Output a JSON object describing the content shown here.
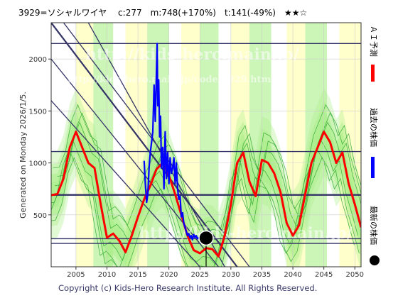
{
  "header": {
    "title": "3929=ソシャルワイヤ　 c:277　m:748(+170%)　t:141(-49%)　★★☆"
  },
  "side_label": "Generated on Monday 2026/1/5.",
  "footer": "Copyright (c) Kids-Hero Research Institute. All Rights Reserved.",
  "watermark": {
    "main": "http://kids-hero.main.jp/",
    "sub": "http://kids-hero.main.jp/code/3929.html"
  },
  "colors": {
    "prediction": "#ff0000",
    "past": "#0000ff",
    "latest": "#000000",
    "bands": "#33aa33",
    "bgyellow": "#ffffcc",
    "bggreen": "#aaee88",
    "lines": "#333366"
  },
  "legend": {
    "prediction": "ＡＩ予測",
    "past": "過去の株価",
    "latest": "最新の株価"
  },
  "chart_data": {
    "type": "line",
    "xlim": [
      2001,
      2051
    ],
    "ylim": [
      0,
      2350
    ],
    "x_ticks": [
      2005,
      2010,
      2015,
      2020,
      2025,
      2030,
      2035,
      2040,
      2045,
      2050
    ],
    "y_ticks": [
      500,
      1000,
      1500,
      2000
    ],
    "latest": {
      "x": 2026.0,
      "y": 277
    },
    "horizontal_lines": [
      2150,
      1110,
      692,
      270,
      225
    ],
    "diagonal_lines": [
      {
        "from": [
          2001,
          2350
        ],
        "to": [
          2031,
          0
        ]
      },
      {
        "from": [
          2003,
          2350
        ],
        "to": [
          2033,
          0
        ]
      },
      {
        "from": [
          2001,
          2000
        ],
        "to": [
          2028,
          0
        ]
      },
      {
        "from": [
          2001,
          1600
        ],
        "to": [
          2025,
          0
        ]
      },
      {
        "from": [
          2007,
          2350
        ],
        "to": [
          2029,
          0
        ]
      }
    ],
    "bg_bands": [
      {
        "from": 2005.0,
        "to": 2007.8,
        "color": "yellow"
      },
      {
        "from": 2007.8,
        "to": 2011.0,
        "color": "green"
      },
      {
        "from": 2013.0,
        "to": 2016.5,
        "color": "yellow"
      },
      {
        "from": 2016.5,
        "to": 2020.0,
        "color": "green"
      },
      {
        "from": 2022.0,
        "to": 2025.0,
        "color": "yellow"
      },
      {
        "from": 2025.0,
        "to": 2028.0,
        "color": "green"
      },
      {
        "from": 2030.0,
        "to": 2033.0,
        "color": "yellow"
      },
      {
        "from": 2033.0,
        "to": 2036.5,
        "color": "green"
      },
      {
        "from": 2039.0,
        "to": 2042.0,
        "color": "yellow"
      },
      {
        "from": 2042.0,
        "to": 2045.5,
        "color": "green"
      },
      {
        "from": 2047.5,
        "to": 2051.0,
        "color": "yellow"
      }
    ],
    "series": [
      {
        "role": "prediction",
        "x": [
          2001,
          2002,
          2003,
          2004,
          2005,
          2006,
          2007,
          2008,
          2009,
          2010,
          2011,
          2012,
          2013,
          2014,
          2015,
          2016,
          2017,
          2018,
          2019,
          2020,
          2021,
          2022,
          2023,
          2024,
          2025,
          2026,
          2027,
          2028,
          2029,
          2030,
          2031,
          2032,
          2033,
          2034,
          2035,
          2036,
          2037,
          2038,
          2039,
          2040,
          2041,
          2042,
          2043,
          2044,
          2045,
          2046,
          2047,
          2048,
          2049,
          2050,
          2051
        ],
        "y": [
          690,
          700,
          850,
          1150,
          1300,
          1150,
          1000,
          950,
          600,
          280,
          320,
          250,
          140,
          300,
          480,
          650,
          780,
          940,
          1000,
          880,
          700,
          500,
          300,
          160,
          130,
          180,
          170,
          100,
          300,
          600,
          1000,
          1100,
          820,
          680,
          1030,
          1000,
          900,
          720,
          420,
          300,
          400,
          700,
          1000,
          1150,
          1300,
          1200,
          1000,
          1100,
          800,
          600,
          380
        ]
      },
      {
        "role": "past",
        "x": [
          2016.0,
          2016.2,
          2016.4,
          2016.6,
          2016.8,
          2017.0,
          2017.2,
          2017.4,
          2017.6,
          2017.8,
          2018.0,
          2018.1,
          2018.2,
          2018.35,
          2018.5,
          2018.65,
          2018.8,
          2019.0,
          2019.2,
          2019.4,
          2019.6,
          2019.8,
          2020.0,
          2020.2,
          2020.4,
          2020.6,
          2020.8,
          2021.0,
          2021.2,
          2021.4,
          2021.6,
          2021.8,
          2022.0,
          2022.2,
          2022.4,
          2022.6,
          2022.8,
          2023.0,
          2023.2,
          2023.4,
          2023.6,
          2023.8,
          2024.0,
          2024.2,
          2024.4,
          2024.6,
          2024.8,
          2025.0,
          2025.2,
          2025.4,
          2025.6,
          2025.8,
          2026.0
        ],
        "y": [
          1020,
          800,
          620,
          700,
          960,
          1100,
          1200,
          1300,
          1750,
          1400,
          1900,
          2150,
          1550,
          1800,
          1250,
          1450,
          950,
          1150,
          750,
          1300,
          850,
          1100,
          800,
          1050,
          900,
          950,
          1050,
          800,
          1000,
          750,
          650,
          680,
          480,
          520,
          420,
          380,
          340,
          300,
          320,
          280,
          300,
          260,
          310,
          280,
          300,
          270,
          280,
          260,
          290,
          275,
          270,
          280,
          277
        ]
      }
    ]
  }
}
